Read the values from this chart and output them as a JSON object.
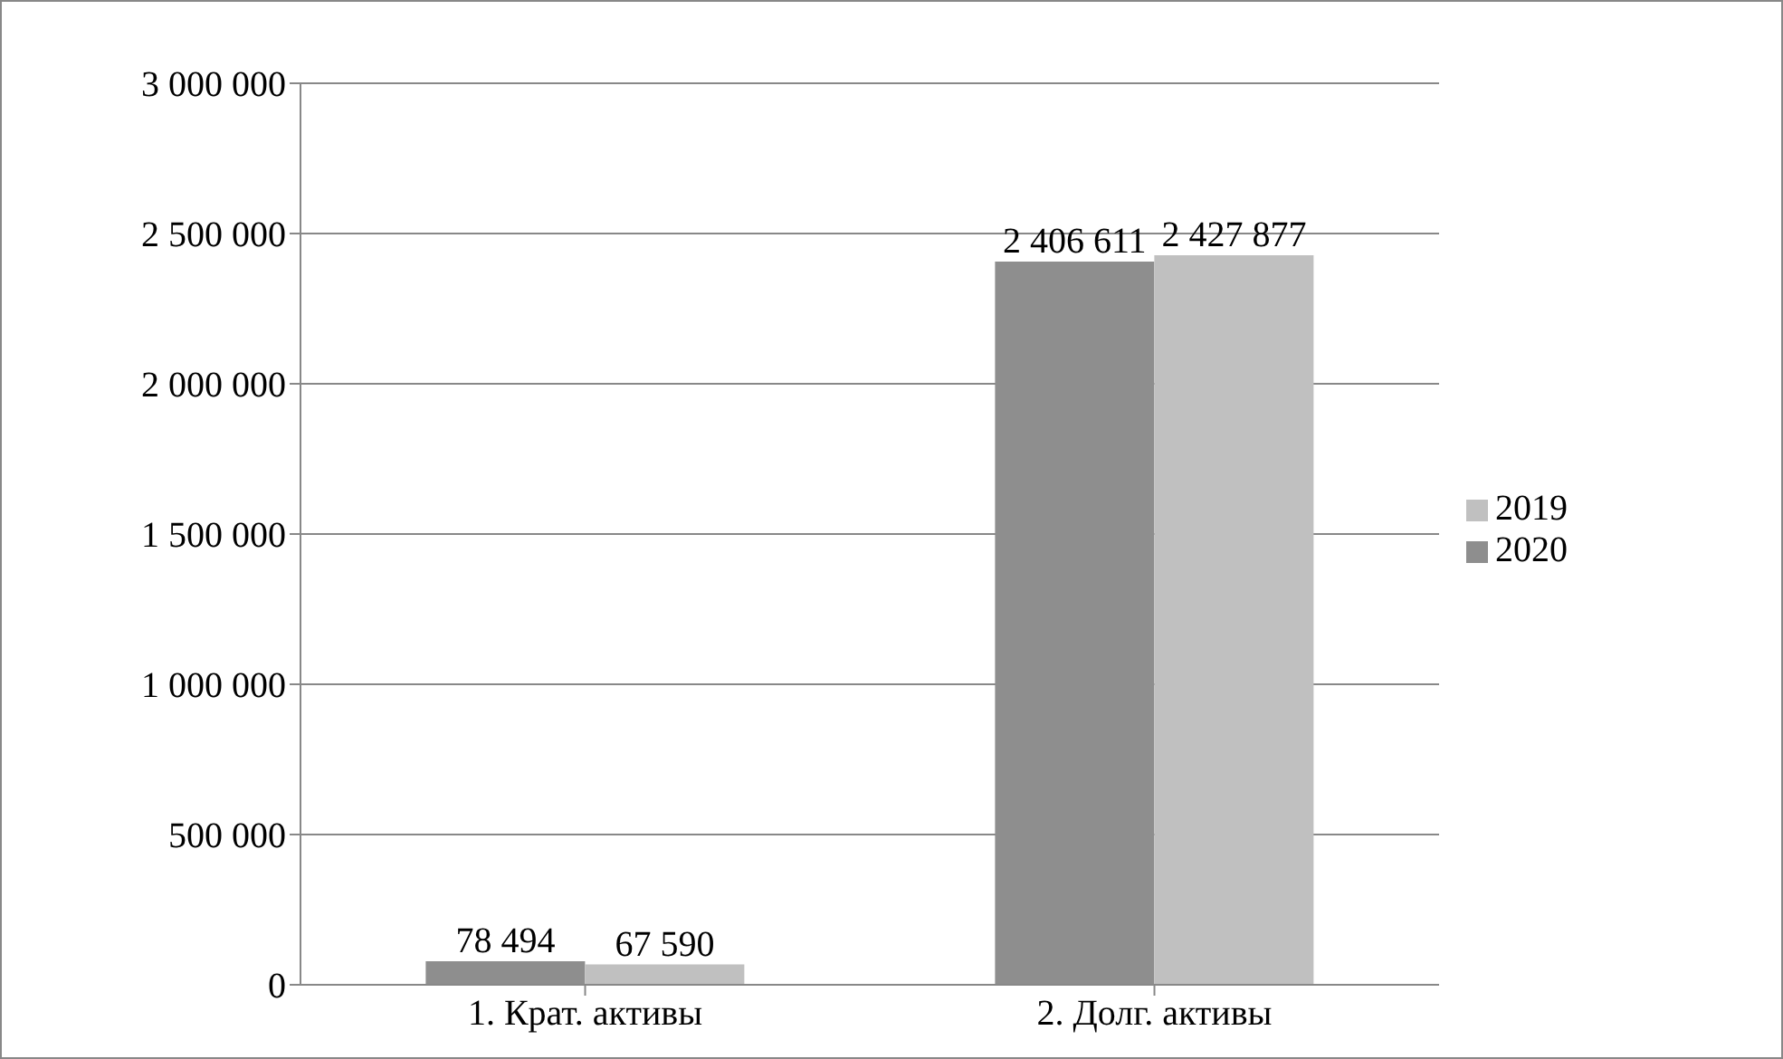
{
  "chart_data": {
    "type": "bar",
    "categories": [
      "1. Крат. активы",
      "2. Долг. активы"
    ],
    "series": [
      {
        "name": "2020",
        "color": "#8e8e8e",
        "values": [
          78494,
          2406611
        ],
        "value_labels": [
          "78 494",
          "2 406 611"
        ]
      },
      {
        "name": "2019",
        "color": "#c0c0c0",
        "values": [
          67590,
          2427877
        ],
        "value_labels": [
          "67 590",
          "2 427 877"
        ]
      }
    ],
    "ylim": [
      0,
      3000000
    ],
    "yticks": [
      {
        "value": 0,
        "label": "0"
      },
      {
        "value": 500000,
        "label": "500 000"
      },
      {
        "value": 1000000,
        "label": "1 000 000"
      },
      {
        "value": 1500000,
        "label": "1 500 000"
      },
      {
        "value": 2000000,
        "label": "2 000 000"
      },
      {
        "value": 2500000,
        "label": "2 500 000"
      },
      {
        "value": 3000000,
        "label": "3 000 000"
      }
    ],
    "grid": "y",
    "legend": "right"
  }
}
